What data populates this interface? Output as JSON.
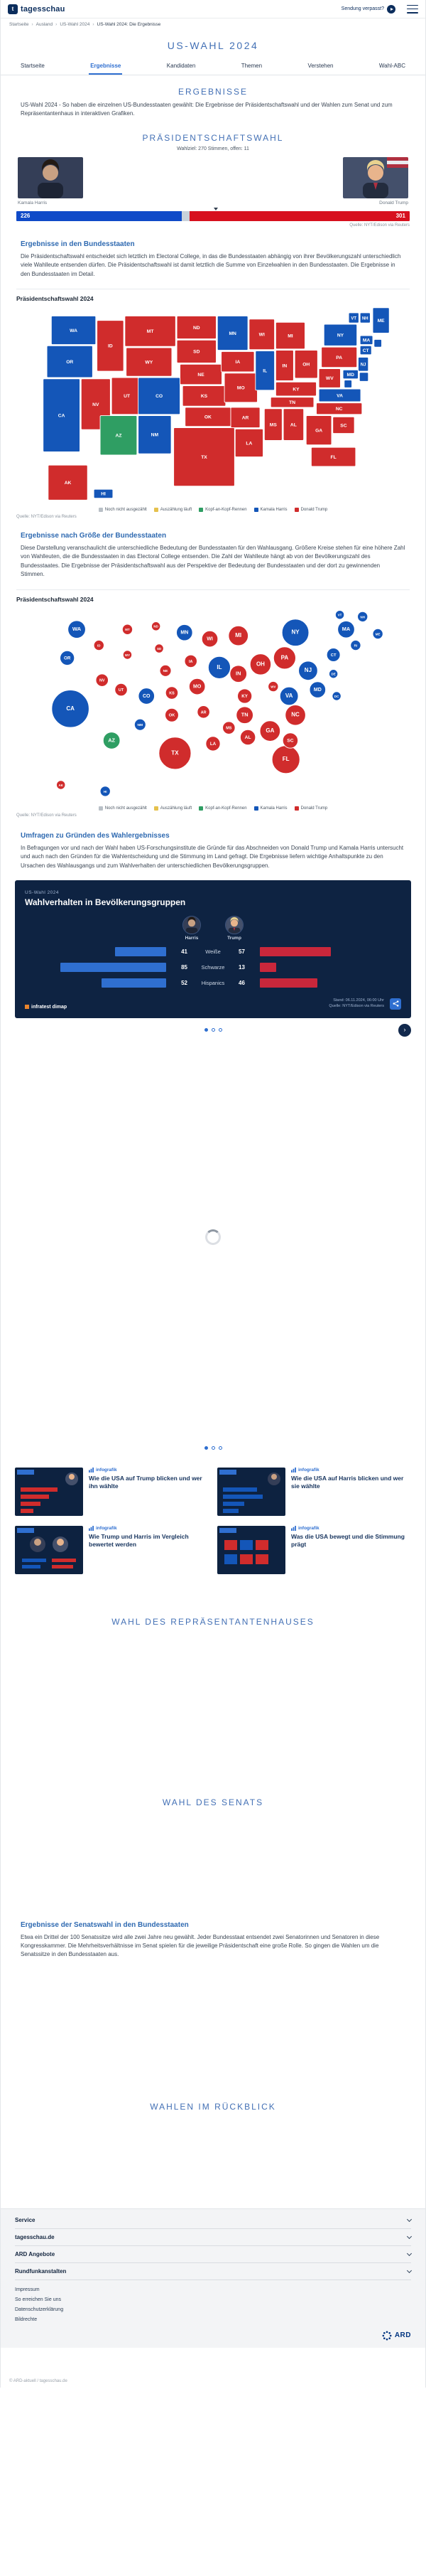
{
  "header": {
    "brand": "tagesschau",
    "missed_label": "Sendung verpasst?"
  },
  "breadcrumb": [
    "Startseite",
    "Ausland",
    "US-Wahl 2024",
    "US-Wahl 2024: Die Ergebnisse"
  ],
  "page_title": "US-WAHL 2024",
  "tabs": [
    {
      "label": "Startseite"
    },
    {
      "label": "Ergebnisse"
    },
    {
      "label": "Kandidaten"
    },
    {
      "label": "Themen"
    },
    {
      "label": "Verstehen"
    },
    {
      "label": "Wahl-ABC"
    }
  ],
  "intro": {
    "heading": "ERGEBNISSE",
    "text": "US-Wahl 2024 - So haben die einzelnen US-Bundesstaaten gewählt: Die Ergebnisse der Präsidentschaftswahl und der Wahlen zum Senat und zum Repräsentantenhaus in interaktiven Grafiken."
  },
  "president": {
    "heading": "PRÄSIDENTSCHAFTSWAHL",
    "subline": "Wahlziel: 270 Stimmen, offen: 11",
    "candidates": [
      {
        "name": "Kamala Harris",
        "votes": 226
      },
      {
        "name": "Donald Trump",
        "votes": 301
      }
    ],
    "source": "Quelle: NYT/Edison via Reuters"
  },
  "states_section": {
    "heading": "Ergebnisse in den Bundesstaaten",
    "text": "Die Präsidentschaftswahl entscheidet sich letztlich im Electoral College, in das die Bundesstaaten abhängig von ihrer Bevölkerungszahl unterschiedlich viele Wahlleute entsenden dürfen. Die Präsidentschaftswahl ist damit letztlich die Summe von Einzelwahlen in den Bundesstaaten. Die Ergebnisse in den Bundesstaaten im Detail.",
    "chart_label": "Präsidentschaftswahl 2024",
    "source": "Quelle: NYT/Edison via Reuters"
  },
  "cartogram_section": {
    "heading": "Ergebnisse nach Größe der Bundesstaaten",
    "text": "Diese Darstellung veranschaulicht die unterschiedliche Bedeutung der Bundesstaaten für den Wahlausgang. Größere Kreise stehen für eine höhere Zahl von Wahlleuten, die die Bundesstaaten in das Electoral College entsenden. Die Zahl der Wahlleute hängt ab von der Bevölkerungszahl des Bundesstaates. Die Ergebnisse der Präsidentschaftswahl aus der Perspektive der Bedeutung der Bundesstaaten und der dort zu gewinnenden Stimmen.",
    "chart_label": "Präsidentschaftswahl 2024",
    "source": "Quelle: NYT/Edison via Reuters"
  },
  "legend": [
    {
      "label": "Noch nicht ausgezählt",
      "color": "#b9c0c7"
    },
    {
      "label": "Auszählung läuft",
      "color": "#e5c14d"
    },
    {
      "label": "Kopf-an-Kopf-Rennen",
      "color": "#2f9e63"
    },
    {
      "label": "Kamala Harris",
      "color": "#1456b8"
    },
    {
      "label": "Donald Trump",
      "color": "#d02c2c"
    }
  ],
  "polls_section": {
    "heading": "Umfragen zu Gründen des Wahlergebnisses",
    "text": "In Befragungen vor und nach der Wahl haben US-Forschungsinstitute die Gründe für das Abschneiden von Donald Trump und Kamala Harris untersucht und auch nach den Gründen für die Wahlentscheidung und die Stimmung im Land gefragt. Die Ergebnisse liefern wichtige Anhaltspunkte zu den Ursachen des Wahlausgangs und zum Wahlverhalten der unterschiedlichen Bevölkerungsgruppen."
  },
  "infographic": {
    "kicker": "US-Wahl 2024",
    "title": "Wahlverhalten in Bevölkerungsgruppen",
    "columns": [
      "Harris",
      "Trump"
    ],
    "rows": [
      {
        "label": "Weiße",
        "harris": 41,
        "trump": 57
      },
      {
        "label": "Schwarze",
        "harris": 85,
        "trump": 13
      },
      {
        "label": "Hispanics",
        "harris": 52,
        "trump": 46
      }
    ],
    "brand": "infratest dimap",
    "stand": "Stand: 06.11.2024, 06:00 Uhr",
    "source": "Quelle: NYT/Edison via Reuters"
  },
  "teasers": [
    {
      "tag": "infografik",
      "title": "Wie die USA auf Trump blicken und wer ihn wählte"
    },
    {
      "tag": "infografik",
      "title": "Wie die USA auf Harris blicken und wer sie wählte"
    },
    {
      "tag": "infografik",
      "title": "Wie Trump und Harris im Vergleich bewertet werden"
    },
    {
      "tag": "infografik",
      "title": "Was die USA bewegt und die Stimmung prägt"
    }
  ],
  "sections": {
    "house": "WAHL DES REPRÄSENTANTENHAUSES",
    "senate": "WAHL DES SENATS",
    "review": "WAHLEN IM RÜCKBLICK"
  },
  "senate_section": {
    "heading": "Ergebnisse der Senatswahl in den Bundesstaaten",
    "text": "Etwa ein Drittel der 100 Senatssitze wird alle zwei Jahre neu gewählt. Jeder Bundesstaat entsendet zwei Senatorinnen und Senatoren in diese Kongresskammer. Die Mehrheitsverhältnisse im Senat spielen für die jeweilige Präsidentschaft eine große Rolle. So gingen die Wahlen um die Senatssitze in den Bundesstaaten aus."
  },
  "footer": {
    "accordions": [
      "Service",
      "tagesschau.de",
      "ARD Angebote",
      "Rundfunkanstalten"
    ],
    "links": [
      "Impressum",
      "So erreichen Sie uns",
      "Datenschutzerklärung",
      "Bildrechte"
    ],
    "ard_label": "ARD",
    "copyright": "© ARD-aktuell / tagesschau.de"
  },
  "chart_data": [
    {
      "id": "electoral_bar",
      "type": "bar",
      "title": "Präsidentschaftswahl 2024 - Electoral College",
      "goal": 270,
      "total": 538,
      "series": [
        {
          "key": "harris",
          "name": "Kamala Harris",
          "value": 226,
          "color": "#0f4ac8",
          "show_value": true,
          "align": "left"
        },
        {
          "key": "offen",
          "name": "offen",
          "value": 11,
          "color": "#c9d2da",
          "show_value": false
        },
        {
          "key": "trump",
          "name": "Donald Trump",
          "value": 301,
          "color": "#d7101e",
          "show_value": true,
          "align": "right"
        }
      ]
    },
    {
      "id": "state_map",
      "type": "heatmap",
      "title": "Präsidentschaftswahl 2024 - Ergebnisse in den Bundesstaaten",
      "note": "tile = vereinfachte Kartenposition, dot = Kartogramm-Position, Kreisfläche proportional zur Zahl der Wahlleute (ev)",
      "result_colors": {
        "harris": "#1456b8",
        "trump": "#d02c2c",
        "kopf": "#2f9e63",
        "auszaehlung": "#e5c14d",
        "offen": "#b9c0c7"
      },
      "states": [
        {
          "abbr": "WA",
          "ev": 12,
          "result": "harris",
          "tile": [
            25,
            15,
            70,
            45
          ],
          "dot": [
            65,
            35
          ]
        },
        {
          "abbr": "OR",
          "ev": 8,
          "result": "harris",
          "tile": [
            18,
            62,
            72,
            50
          ],
          "dot": [
            50,
            80
          ]
        },
        {
          "abbr": "CA",
          "ev": 54,
          "result": "harris",
          "tile": [
            12,
            114,
            58,
            115
          ],
          "dot": [
            55,
            160
          ]
        },
        {
          "abbr": "ID",
          "ev": 4,
          "result": "trump",
          "tile": [
            97,
            22,
            42,
            80
          ],
          "dot": [
            100,
            60
          ]
        },
        {
          "abbr": "NV",
          "ev": 6,
          "result": "trump",
          "tile": [
            72,
            114,
            46,
            80
          ],
          "dot": [
            105,
            115
          ]
        },
        {
          "abbr": "UT",
          "ev": 6,
          "result": "trump",
          "tile": [
            120,
            112,
            48,
            58
          ],
          "dot": [
            135,
            130
          ]
        },
        {
          "abbr": "AZ",
          "ev": 11,
          "result": "kopf",
          "tile": [
            102,
            172,
            58,
            62
          ],
          "dot": [
            120,
            210
          ]
        },
        {
          "abbr": "MT",
          "ev": 4,
          "result": "trump",
          "tile": [
            141,
            15,
            80,
            48
          ],
          "dot": [
            145,
            35
          ]
        },
        {
          "abbr": "WY",
          "ev": 3,
          "result": "trump",
          "tile": [
            143,
            65,
            72,
            45
          ],
          "dot": [
            145,
            75
          ]
        },
        {
          "abbr": "CO",
          "ev": 10,
          "result": "harris",
          "tile": [
            162,
            112,
            66,
            58
          ],
          "dot": [
            175,
            140
          ]
        },
        {
          "abbr": "NM",
          "ev": 5,
          "result": "harris",
          "tile": [
            162,
            172,
            52,
            60
          ],
          "dot": [
            165,
            185
          ]
        },
        {
          "abbr": "ND",
          "ev": 3,
          "result": "trump",
          "tile": [
            223,
            15,
            62,
            36
          ],
          "dot": [
            190,
            30
          ]
        },
        {
          "abbr": "SD",
          "ev": 3,
          "result": "trump",
          "tile": [
            223,
            53,
            62,
            36
          ],
          "dot": [
            195,
            65
          ]
        },
        {
          "abbr": "NE",
          "ev": 5,
          "result": "trump",
          "tile": [
            228,
            91,
            66,
            32
          ],
          "dot": [
            205,
            100
          ]
        },
        {
          "abbr": "KS",
          "ev": 6,
          "result": "trump",
          "tile": [
            232,
            125,
            68,
            32
          ],
          "dot": [
            215,
            135
          ]
        },
        {
          "abbr": "OK",
          "ev": 7,
          "result": "trump",
          "tile": [
            236,
            159,
            72,
            30
          ],
          "dot": [
            215,
            170
          ]
        },
        {
          "abbr": "TX",
          "ev": 40,
          "result": "trump",
          "tile": [
            218,
            191,
            96,
            92
          ],
          "dot": [
            220,
            230
          ]
        },
        {
          "abbr": "MN",
          "ev": 10,
          "result": "harris",
          "tile": [
            287,
            15,
            48,
            54
          ],
          "dot": [
            235,
            40
          ]
        },
        {
          "abbr": "IA",
          "ev": 6,
          "result": "trump",
          "tile": [
            293,
            71,
            52,
            32
          ],
          "dot": [
            245,
            85
          ]
        },
        {
          "abbr": "MO",
          "ev": 10,
          "result": "trump",
          "tile": [
            298,
            105,
            52,
            46
          ],
          "dot": [
            255,
            125
          ]
        },
        {
          "abbr": "AR",
          "ev": 6,
          "result": "trump",
          "tile": [
            308,
            159,
            46,
            32
          ],
          "dot": [
            265,
            165
          ]
        },
        {
          "abbr": "LA",
          "ev": 8,
          "result": "trump",
          "tile": [
            315,
            193,
            44,
            44
          ],
          "dot": [
            280,
            215
          ]
        },
        {
          "abbr": "WI",
          "ev": 10,
          "result": "trump",
          "tile": [
            337,
            20,
            40,
            48
          ],
          "dot": [
            275,
            50
          ]
        },
        {
          "abbr": "IL",
          "ev": 19,
          "result": "harris",
          "tile": [
            347,
            70,
            30,
            62
          ],
          "dot": [
            290,
            95
          ]
        },
        {
          "abbr": "MS",
          "ev": 6,
          "result": "trump",
          "tile": [
            361,
            161,
            28,
            50
          ],
          "dot": [
            305,
            190
          ]
        },
        {
          "abbr": "MI",
          "ev": 15,
          "result": "trump",
          "tile": [
            379,
            25,
            46,
            42
          ],
          "dot": [
            320,
            45
          ]
        },
        {
          "abbr": "IN",
          "ev": 11,
          "result": "trump",
          "tile": [
            379,
            69,
            28,
            48
          ],
          "dot": [
            320,
            105
          ]
        },
        {
          "abbr": "OH",
          "ev": 17,
          "result": "trump",
          "tile": [
            409,
            69,
            36,
            44
          ],
          "dot": [
            355,
            90
          ]
        },
        {
          "abbr": "KY",
          "ev": 8,
          "result": "trump",
          "tile": [
            379,
            119,
            64,
            22
          ],
          "dot": [
            330,
            140
          ]
        },
        {
          "abbr": "TN",
          "ev": 11,
          "result": "trump",
          "tile": [
            371,
            143,
            68,
            16
          ],
          "dot": [
            330,
            170
          ]
        },
        {
          "abbr": "AL",
          "ev": 9,
          "result": "trump",
          "tile": [
            391,
            161,
            32,
            50
          ],
          "dot": [
            335,
            205
          ]
        },
        {
          "abbr": "GA",
          "ev": 16,
          "result": "trump",
          "tile": [
            427,
            172,
            40,
            46
          ],
          "dot": [
            370,
            195
          ]
        },
        {
          "abbr": "FL",
          "ev": 30,
          "result": "trump",
          "tile": [
            435,
            222,
            70,
            30
          ],
          "dot": [
            395,
            240
          ]
        },
        {
          "abbr": "WV",
          "ev": 4,
          "result": "trump",
          "tile": [
            447,
            98,
            34,
            30
          ],
          "dot": [
            375,
            125
          ]
        },
        {
          "abbr": "VA",
          "ev": 13,
          "result": "harris",
          "tile": [
            447,
            130,
            66,
            20
          ],
          "dot": [
            400,
            140
          ]
        },
        {
          "abbr": "NC",
          "ev": 16,
          "result": "trump",
          "tile": [
            443,
            152,
            72,
            18
          ],
          "dot": [
            410,
            170
          ]
        },
        {
          "abbr": "SC",
          "ev": 9,
          "result": "trump",
          "tile": [
            469,
            174,
            34,
            26
          ],
          "dot": [
            402,
            210
          ]
        },
        {
          "abbr": "PA",
          "ev": 19,
          "result": "trump",
          "tile": [
            451,
            64,
            56,
            32
          ],
          "dot": [
            393,
            80
          ]
        },
        {
          "abbr": "NY",
          "ev": 28,
          "result": "harris",
          "tile": [
            455,
            28,
            52,
            34
          ],
          "dot": [
            410,
            40
          ]
        },
        {
          "abbr": "NJ",
          "ev": 14,
          "result": "harris",
          "tile": [
            509,
            80,
            16,
            22
          ],
          "dot": [
            430,
            100
          ]
        },
        {
          "abbr": "MD",
          "ev": 10,
          "result": "harris",
          "tile": [
            485,
            100,
            24,
            14
          ],
          "dot": [
            445,
            130
          ]
        },
        {
          "abbr": "DE",
          "ev": 3,
          "result": "harris",
          "tile": [
            511,
            104,
            14,
            14
          ],
          "dot": [
            470,
            105
          ]
        },
        {
          "abbr": "DC",
          "ev": 3,
          "result": "harris",
          "tile": [
            487,
            116,
            12,
            12
          ],
          "dot": [
            475,
            140
          ]
        },
        {
          "abbr": "CT",
          "ev": 7,
          "result": "harris",
          "tile": [
            512,
            62,
            18,
            14
          ],
          "dot": [
            470,
            75
          ]
        },
        {
          "abbr": "RI",
          "ev": 4,
          "result": "harris",
          "tile": [
            534,
            52,
            12,
            12
          ],
          "dot": [
            505,
            60
          ]
        },
        {
          "abbr": "MA",
          "ev": 11,
          "result": "harris",
          "tile": [
            512,
            46,
            20,
            14
          ],
          "dot": [
            490,
            35
          ]
        },
        {
          "abbr": "VT",
          "ev": 3,
          "result": "harris",
          "tile": [
            494,
            10,
            16,
            16
          ],
          "dot": [
            480,
            12
          ]
        },
        {
          "abbr": "NH",
          "ev": 4,
          "result": "harris",
          "tile": [
            512,
            10,
            16,
            16
          ],
          "dot": [
            516,
            15
          ]
        },
        {
          "abbr": "ME",
          "ev": 4,
          "result": "harris",
          "tile": [
            532,
            2,
            26,
            40
          ],
          "dot": [
            540,
            42
          ]
        },
        {
          "abbr": "AK",
          "ev": 3,
          "result": "trump",
          "tile": [
            20,
            250,
            62,
            55
          ],
          "dot": [
            40,
            280
          ]
        },
        {
          "abbr": "HI",
          "ev": 4,
          "result": "harris",
          "tile": [
            92,
            288,
            30,
            14
          ],
          "dot": [
            110,
            290
          ]
        }
      ]
    },
    {
      "id": "demographics",
      "type": "bar",
      "title": "Wahlverhalten in Bevölkerungsgruppen",
      "categories": [
        "Weiße",
        "Schwarze",
        "Hispanics"
      ],
      "series": [
        {
          "name": "Harris",
          "values": [
            41,
            85,
            52
          ],
          "color": "#2f6fd0"
        },
        {
          "name": "Trump",
          "values": [
            57,
            13,
            46
          ],
          "color": "#c9273b"
        }
      ],
      "xlim": [
        0,
        100
      ],
      "legend_position": "top"
    }
  ]
}
